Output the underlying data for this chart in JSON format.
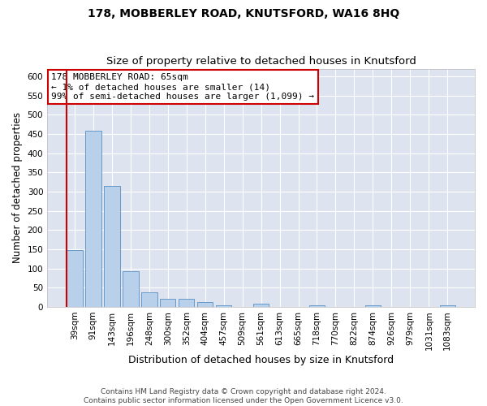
{
  "title": "178, MOBBERLEY ROAD, KNUTSFORD, WA16 8HQ",
  "subtitle": "Size of property relative to detached houses in Knutsford",
  "xlabel": "Distribution of detached houses by size in Knutsford",
  "ylabel": "Number of detached properties",
  "bar_labels": [
    "39sqm",
    "91sqm",
    "143sqm",
    "196sqm",
    "248sqm",
    "300sqm",
    "352sqm",
    "404sqm",
    "457sqm",
    "509sqm",
    "561sqm",
    "613sqm",
    "665sqm",
    "718sqm",
    "770sqm",
    "822sqm",
    "874sqm",
    "926sqm",
    "979sqm",
    "1031sqm",
    "1083sqm"
  ],
  "bar_values": [
    148,
    459,
    314,
    93,
    37,
    22,
    22,
    13,
    5,
    0,
    9,
    0,
    0,
    5,
    0,
    0,
    5,
    0,
    0,
    0,
    5
  ],
  "bar_color": "#b8d0ea",
  "bar_edge_color": "#6699cc",
  "highlight_line_color": "#cc0000",
  "annotation_text": "178 MOBBERLEY ROAD: 65sqm\n← 1% of detached houses are smaller (14)\n99% of semi-detached houses are larger (1,099) →",
  "annotation_box_color": "#ffffff",
  "annotation_box_edge": "#cc0000",
  "ylim": [
    0,
    620
  ],
  "yticks": [
    0,
    50,
    100,
    150,
    200,
    250,
    300,
    350,
    400,
    450,
    500,
    550,
    600
  ],
  "fig_bg_color": "#ffffff",
  "plot_bg_color": "#dde4f0",
  "grid_color": "#ffffff",
  "footer_text": "Contains HM Land Registry data © Crown copyright and database right 2024.\nContains public sector information licensed under the Open Government Licence v3.0.",
  "title_fontsize": 10,
  "subtitle_fontsize": 9.5,
  "xlabel_fontsize": 9,
  "ylabel_fontsize": 8.5,
  "tick_fontsize": 7.5,
  "annotation_fontsize": 8,
  "footer_fontsize": 6.5
}
